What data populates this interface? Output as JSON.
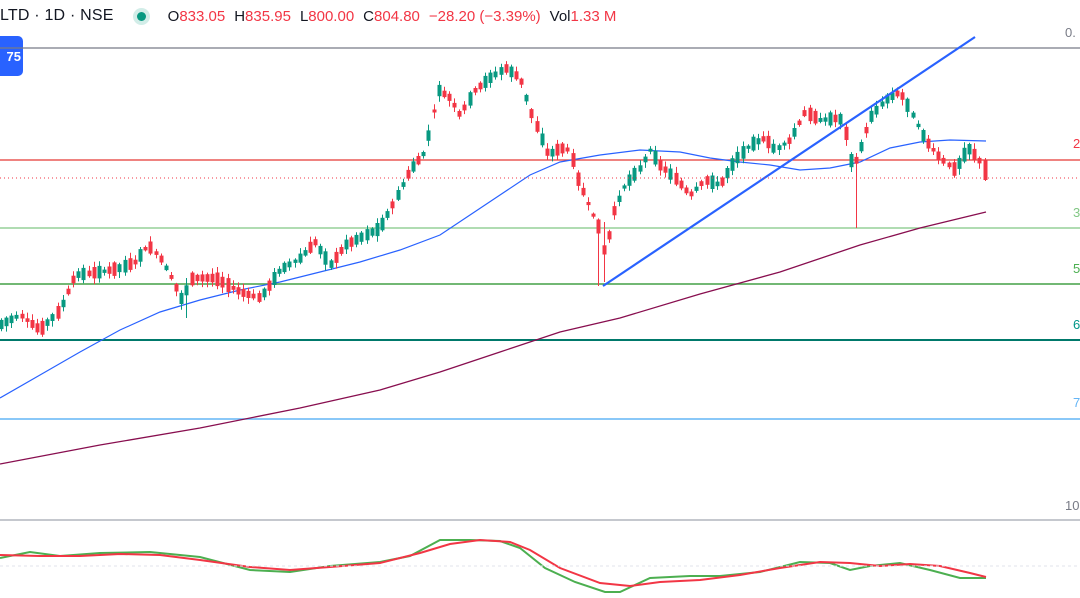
{
  "header": {
    "symbol": "LTD · 1D · NSE",
    "open_label": "O",
    "open": "833.05",
    "high_label": "H",
    "high": "835.95",
    "low_label": "L",
    "low": "800.00",
    "close_label": "C",
    "close": "804.80",
    "change": "−28.20 (−3.39%)",
    "vol_label": "Vol",
    "vol": "1.33 M",
    "status_color": "#089981",
    "down_color": "#f23645"
  },
  "badge": {
    "text": "75",
    "color": "#2962ff"
  },
  "fib_labels": [
    {
      "text": "0.",
      "color": "#787b86"
    },
    {
      "text": "2",
      "color": "#f23645"
    },
    {
      "text": "3",
      "color": "#81c784"
    },
    {
      "text": "5",
      "color": "#4caf50"
    },
    {
      "text": "6",
      "color": "#009688"
    },
    {
      "text": "7",
      "color": "#64b5f6"
    },
    {
      "text": "10",
      "color": "#787b86"
    }
  ],
  "chart_data": {
    "type": "candlestick",
    "title": "LTD · 1D · NSE",
    "last_candle": {
      "open": 833.05,
      "high": 835.95,
      "low": 800.0,
      "close": 804.8
    },
    "volume": "1.33 M",
    "colors": {
      "up": "#089981",
      "down": "#f23645",
      "ma_fast": "#2962ff",
      "ma_slow": "#880e4f",
      "trendline": "#2962ff",
      "macd": "#4caf50",
      "signal": "#f23645"
    },
    "fib_levels": [
      {
        "label": "0.",
        "color": "#787b86"
      },
      {
        "label": "2",
        "color": "#f23645"
      },
      {
        "label": "3",
        "color": "#81c784"
      },
      {
        "label": "5",
        "color": "#4caf50"
      },
      {
        "label": "6",
        "color": "#009688"
      },
      {
        "label": "7",
        "color": "#64b5f6"
      },
      {
        "label": "10",
        "color": "#787b86"
      }
    ],
    "grid": false,
    "indicators": [
      "moving average (fast)",
      "moving average (slow)",
      "trendline",
      "oscillator (two lines)"
    ]
  }
}
